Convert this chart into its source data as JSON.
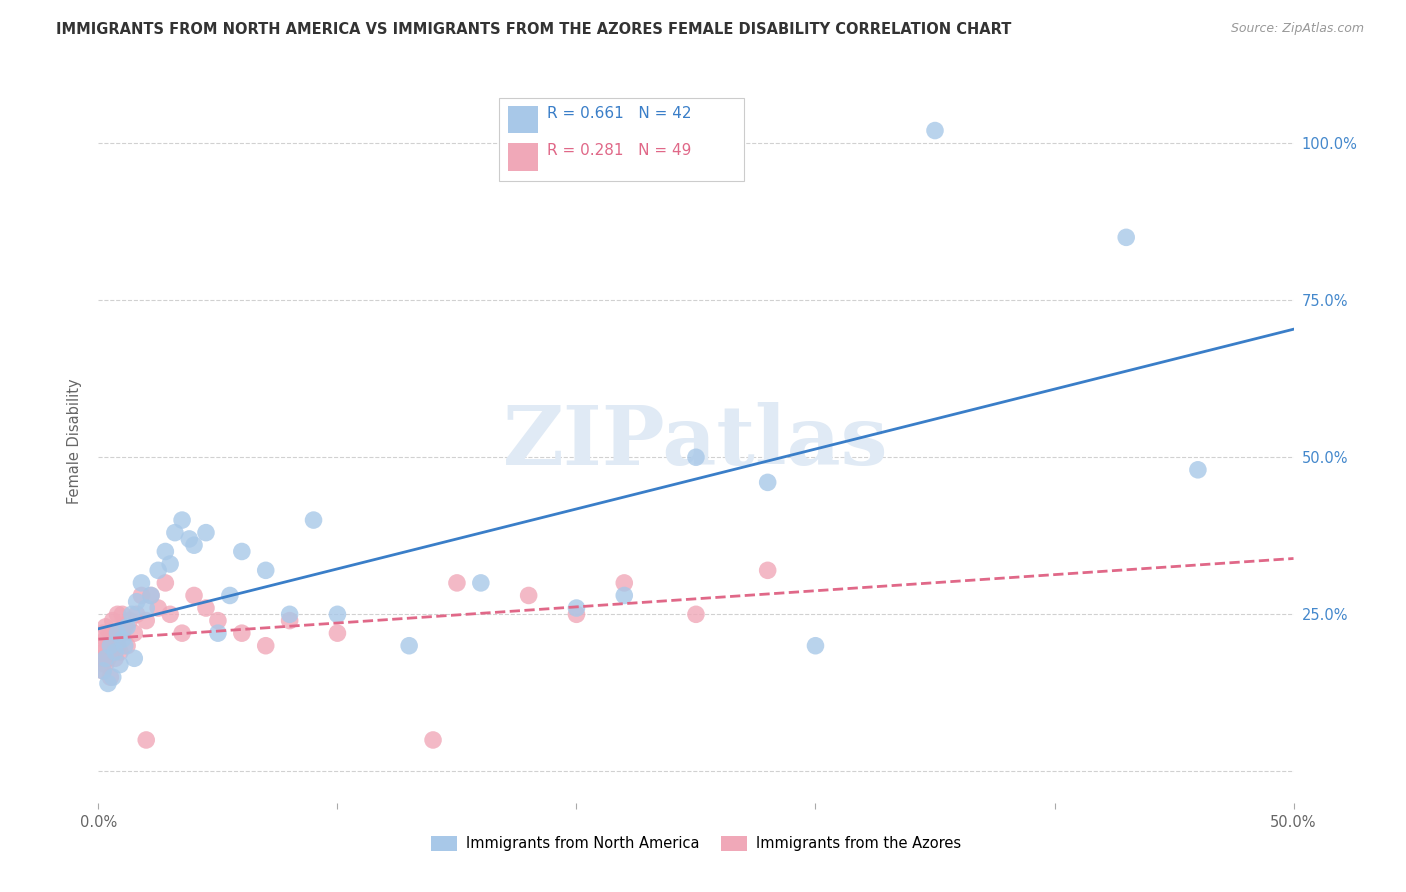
{
  "title": "IMMIGRANTS FROM NORTH AMERICA VS IMMIGRANTS FROM THE AZORES FEMALE DISABILITY CORRELATION CHART",
  "source": "Source: ZipAtlas.com",
  "ylabel": "Female Disability",
  "xlim": [
    0.0,
    0.5
  ],
  "ylim": [
    -0.05,
    1.1
  ],
  "blue_color": "#A8C8E8",
  "pink_color": "#F0A8B8",
  "blue_line_color": "#3A7EC8",
  "pink_line_color": "#E06888",
  "grid_color": "#CCCCCC",
  "watermark_color": "#E0EAF5",
  "watermark": "ZIPatlas",
  "background_color": "#FFFFFF",
  "right_tick_color": "#4488CC",
  "legend_line1": "R = 0.661   N = 42",
  "legend_line2": "R = 0.281   N = 49",
  "bottom_label_blue": "Immigrants from North America",
  "bottom_label_pink": "Immigrants from the Azores",
  "title_color": "#333333",
  "source_color": "#999999",
  "ylabel_color": "#666666",
  "tick_label_color": "#666666"
}
